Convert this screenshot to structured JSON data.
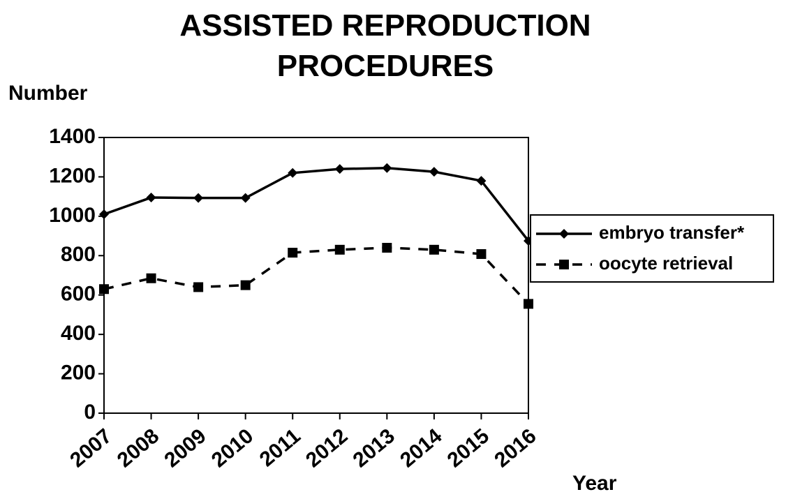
{
  "chart_data": {
    "type": "line",
    "title": "ASSISTED REPRODUCTION PROCEDURES",
    "y_label": "Number",
    "x_label": "Year",
    "categories": [
      "2007",
      "2008",
      "2009",
      "2010",
      "2011",
      "2012",
      "2013",
      "2014",
      "2015",
      "2016"
    ],
    "series": [
      {
        "name": "embryo transfer*",
        "color": "#000000",
        "marker": "diamond",
        "line_style": "solid",
        "values": [
          1010,
          1095,
          1093,
          1093,
          1220,
          1240,
          1245,
          1226,
          1180,
          875
        ]
      },
      {
        "name": "oocyte retrieval",
        "color": "#000000",
        "marker": "square",
        "line_style": "dashed",
        "values": [
          630,
          685,
          640,
          650,
          815,
          830,
          840,
          830,
          808,
          555
        ]
      }
    ],
    "ylim": [
      0,
      1400
    ],
    "yticks": [
      0,
      200,
      400,
      600,
      800,
      1000,
      1200,
      1400
    ],
    "grid": false,
    "legend": "right"
  }
}
